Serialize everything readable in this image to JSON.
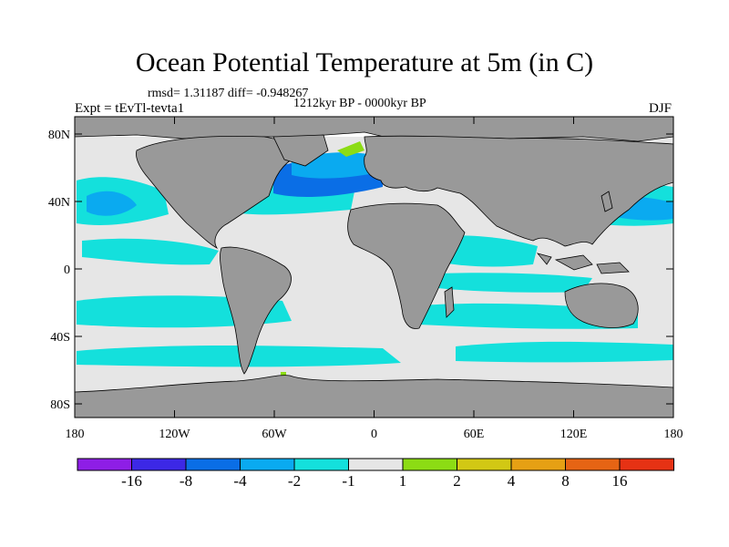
{
  "title": "Ocean Potential Temperature at 5m (in C)",
  "stats": "rmsd= 1.31187 diff= -0.948267",
  "period": "1212kyr BP - 0000kyr BP",
  "experiment": "Expt = tEvTl-tevta1",
  "season": "DJF",
  "map": {
    "land_color": "#999999",
    "near_zero_color": "#e6e6e6",
    "background": "#ffffff",
    "y_ticks": [
      "80N",
      "40N",
      "0",
      "40S",
      "80S"
    ],
    "x_ticks": [
      "180",
      "120W",
      "60W",
      "0",
      "60E",
      "120E",
      "180"
    ]
  },
  "colorbar": {
    "labels": [
      "-16",
      "-8",
      "-4",
      "-2",
      "-1",
      "1",
      "2",
      "4",
      "8",
      "16"
    ],
    "colors": [
      "#8e1ee6",
      "#3c28e6",
      "#0a6ee6",
      "#0aaaf0",
      "#14e0dc",
      "#e6e6e6",
      "#8cdc14",
      "#d2c814",
      "#e6a014",
      "#e66414",
      "#e63214"
    ]
  }
}
